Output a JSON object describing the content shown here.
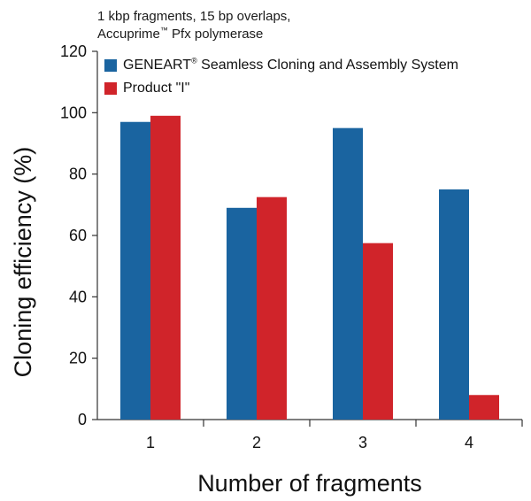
{
  "subtitle": {
    "line1": "1 kbp fragments, 15 bp overlaps,",
    "line2_prefix": "Accuprime",
    "line2_sup": "™",
    "line2_suffix": " Pfx polymerase"
  },
  "legend": {
    "entry1_prefix": "GENEART",
    "entry1_sup": "®",
    "entry1_suffix": " Seamless Cloning and Assembly System",
    "entry2": "Product \"I\""
  },
  "colors": {
    "series1": "#1a64a0",
    "series2": "#d0242a",
    "axis": "#333333"
  },
  "chart_data": {
    "type": "bar",
    "categories": [
      "1",
      "2",
      "3",
      "4"
    ],
    "series": [
      {
        "name": "GENEART® Seamless Cloning and Assembly System",
        "values": [
          97,
          69,
          95,
          75
        ]
      },
      {
        "name": "Product \"I\"",
        "values": [
          99,
          72.5,
          57.5,
          8
        ]
      }
    ],
    "xlabel": "Number of fragments",
    "ylabel": "Cloning efficiency (%)",
    "ylim": [
      0,
      120
    ],
    "yticks": [
      0,
      20,
      40,
      60,
      80,
      100,
      120
    ],
    "grid": false,
    "legend_position": "top-left"
  }
}
